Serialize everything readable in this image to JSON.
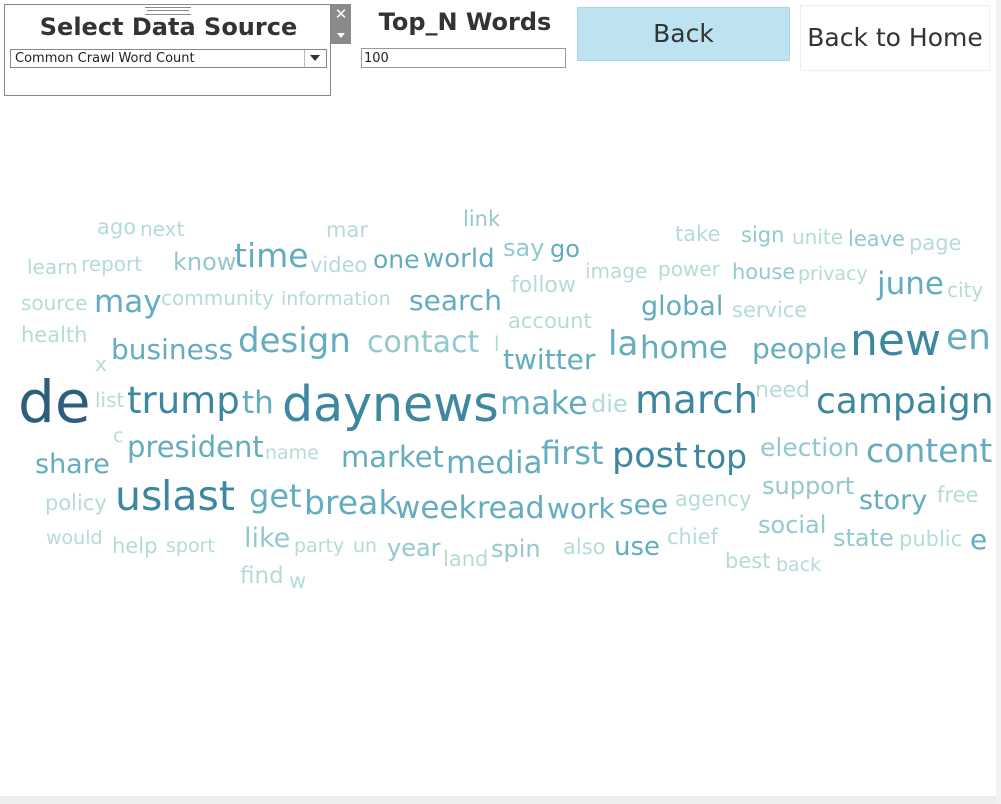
{
  "source_panel": {
    "title": "Select Data Source",
    "selected": "Common Crawl Word Count",
    "close_glyph": "✕"
  },
  "top_n": {
    "title": "Top_N Words",
    "value": "100"
  },
  "buttons": {
    "back": "Back",
    "home": "Back to Home"
  },
  "colors": {
    "darkest": "#2d5f7d",
    "dark": "#3d87a0",
    "medium": "#63adbf",
    "light": "#93c9ce",
    "lightest": "#b5dbd8"
  },
  "word_cloud": [
    {
      "text": "link",
      "tone": "light"
    },
    {
      "text": "ago",
      "tone": "lightest"
    },
    {
      "text": "next",
      "tone": "lightest"
    },
    {
      "text": "mar",
      "tone": "lightest"
    },
    {
      "text": "take",
      "tone": "lightest"
    },
    {
      "text": "sign",
      "tone": "light"
    },
    {
      "text": "unite",
      "tone": "lightest"
    },
    {
      "text": "leave",
      "tone": "light"
    },
    {
      "text": "page",
      "tone": "lightest"
    },
    {
      "text": "say",
      "tone": "light"
    },
    {
      "text": "go",
      "tone": "medium"
    },
    {
      "text": "time",
      "tone": "medium"
    },
    {
      "text": "learn",
      "tone": "lightest"
    },
    {
      "text": "report",
      "tone": "lightest"
    },
    {
      "text": "know",
      "tone": "light"
    },
    {
      "text": "video",
      "tone": "lightest"
    },
    {
      "text": "one",
      "tone": "medium"
    },
    {
      "text": "world",
      "tone": "medium"
    },
    {
      "text": "image",
      "tone": "lightest"
    },
    {
      "text": "power",
      "tone": "lightest"
    },
    {
      "text": "house",
      "tone": "light"
    },
    {
      "text": "privacy",
      "tone": "lightest"
    },
    {
      "text": "june",
      "tone": "medium"
    },
    {
      "text": "city",
      "tone": "lightest"
    },
    {
      "text": "follow",
      "tone": "lightest"
    },
    {
      "text": "source",
      "tone": "lightest"
    },
    {
      "text": "may",
      "tone": "medium"
    },
    {
      "text": "community",
      "tone": "lightest"
    },
    {
      "text": "information",
      "tone": "lightest"
    },
    {
      "text": "search",
      "tone": "medium"
    },
    {
      "text": "global",
      "tone": "medium"
    },
    {
      "text": "service",
      "tone": "lightest"
    },
    {
      "text": "account",
      "tone": "lightest"
    },
    {
      "text": "health",
      "tone": "lightest"
    },
    {
      "text": "design",
      "tone": "medium"
    },
    {
      "text": "contact",
      "tone": "light"
    },
    {
      "text": "l",
      "tone": "lightest"
    },
    {
      "text": "la",
      "tone": "medium"
    },
    {
      "text": "home",
      "tone": "medium"
    },
    {
      "text": "people",
      "tone": "medium"
    },
    {
      "text": "new",
      "tone": "dark"
    },
    {
      "text": "en",
      "tone": "medium"
    },
    {
      "text": "business",
      "tone": "medium"
    },
    {
      "text": "x",
      "tone": "lightest"
    },
    {
      "text": "twitter",
      "tone": "medium"
    },
    {
      "text": "de",
      "tone": "darkest"
    },
    {
      "text": "list",
      "tone": "lightest"
    },
    {
      "text": "trump",
      "tone": "dark"
    },
    {
      "text": "th",
      "tone": "medium"
    },
    {
      "text": "day",
      "tone": "dark"
    },
    {
      "text": "news",
      "tone": "dark"
    },
    {
      "text": "make",
      "tone": "medium"
    },
    {
      "text": "die",
      "tone": "lightest"
    },
    {
      "text": "march",
      "tone": "dark"
    },
    {
      "text": "need",
      "tone": "lightest"
    },
    {
      "text": "campaign",
      "tone": "dark"
    },
    {
      "text": "c",
      "tone": "lightest"
    },
    {
      "text": "president",
      "tone": "medium"
    },
    {
      "text": "name",
      "tone": "lightest"
    },
    {
      "text": "share",
      "tone": "medium"
    },
    {
      "text": "market",
      "tone": "medium"
    },
    {
      "text": "media",
      "tone": "medium"
    },
    {
      "text": "first",
      "tone": "medium"
    },
    {
      "text": "post",
      "tone": "dark"
    },
    {
      "text": "top",
      "tone": "dark"
    },
    {
      "text": "election",
      "tone": "light"
    },
    {
      "text": "content",
      "tone": "medium"
    },
    {
      "text": "us",
      "tone": "dark"
    },
    {
      "text": "last",
      "tone": "dark"
    },
    {
      "text": "get",
      "tone": "medium"
    },
    {
      "text": "break",
      "tone": "medium"
    },
    {
      "text": "week",
      "tone": "medium"
    },
    {
      "text": "read",
      "tone": "medium"
    },
    {
      "text": "work",
      "tone": "medium"
    },
    {
      "text": "see",
      "tone": "medium"
    },
    {
      "text": "agency",
      "tone": "lightest"
    },
    {
      "text": "support",
      "tone": "light"
    },
    {
      "text": "story",
      "tone": "medium"
    },
    {
      "text": "free",
      "tone": "lightest"
    },
    {
      "text": "policy",
      "tone": "lightest"
    },
    {
      "text": "would",
      "tone": "lightest"
    },
    {
      "text": "like",
      "tone": "light"
    },
    {
      "text": "help",
      "tone": "lightest"
    },
    {
      "text": "sport",
      "tone": "lightest"
    },
    {
      "text": "party",
      "tone": "lightest"
    },
    {
      "text": "un",
      "tone": "lightest"
    },
    {
      "text": "year",
      "tone": "light"
    },
    {
      "text": "land",
      "tone": "lightest"
    },
    {
      "text": "spin",
      "tone": "light"
    },
    {
      "text": "also",
      "tone": "lightest"
    },
    {
      "text": "use",
      "tone": "medium"
    },
    {
      "text": "chief",
      "tone": "lightest"
    },
    {
      "text": "social",
      "tone": "light"
    },
    {
      "text": "state",
      "tone": "light"
    },
    {
      "text": "public",
      "tone": "lightest"
    },
    {
      "text": "e",
      "tone": "medium"
    },
    {
      "text": "best",
      "tone": "lightest"
    },
    {
      "text": "back",
      "tone": "lightest"
    },
    {
      "text": "find",
      "tone": "lightest"
    },
    {
      "text": "w",
      "tone": "lightest"
    }
  ]
}
